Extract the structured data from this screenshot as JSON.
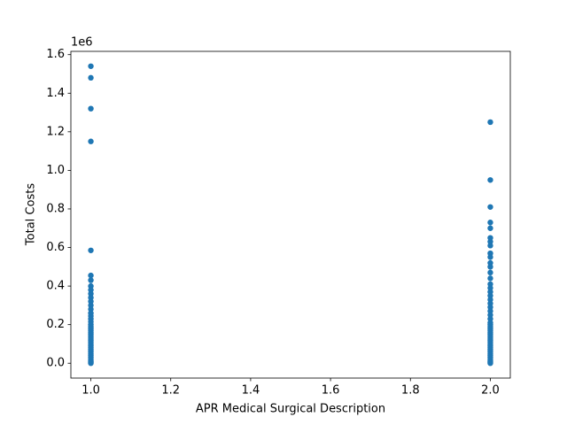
{
  "chart_data": {
    "type": "scatter",
    "xlabel": "APR Medical Surgical Description",
    "ylabel": "Total Costs",
    "y_offset_label": "1e6",
    "color": "#1f77b4",
    "xlim": [
      0.95,
      2.05
    ],
    "ylim": [
      -0.077,
      1.617
    ],
    "xticks": [
      {
        "value": 1.0,
        "label": "1.0"
      },
      {
        "value": 1.2,
        "label": "1.2"
      },
      {
        "value": 1.4,
        "label": "1.4"
      },
      {
        "value": 1.6,
        "label": "1.6"
      },
      {
        "value": 1.8,
        "label": "1.8"
      },
      {
        "value": 2.0,
        "label": "2.0"
      }
    ],
    "yticks": [
      {
        "value": 0.0,
        "label": "0.0"
      },
      {
        "value": 0.2,
        "label": "0.2"
      },
      {
        "value": 0.4,
        "label": "0.4"
      },
      {
        "value": 0.6,
        "label": "0.6"
      },
      {
        "value": 0.8,
        "label": "0.8"
      },
      {
        "value": 1.0,
        "label": "1.0"
      },
      {
        "value": 1.2,
        "label": "1.2"
      },
      {
        "value": 1.4,
        "label": "1.4"
      },
      {
        "value": 1.6,
        "label": "1.6"
      }
    ],
    "x": [
      1,
      1,
      1,
      1,
      1,
      1,
      1,
      1,
      1,
      1,
      1,
      1,
      1,
      1,
      1,
      1,
      1,
      1,
      1,
      1,
      1,
      1,
      1,
      1,
      1,
      1,
      1,
      1,
      1,
      1,
      1,
      1,
      1,
      1,
      1,
      1,
      1,
      1,
      1,
      1,
      2,
      2,
      2,
      2,
      2,
      2,
      2,
      2,
      2,
      2,
      2,
      2,
      2,
      2,
      2,
      2,
      2,
      2,
      2,
      2,
      2,
      2,
      2,
      2,
      2,
      2,
      2,
      2,
      2,
      2,
      2,
      2,
      2,
      2,
      2,
      2,
      2,
      2,
      2,
      2,
      2,
      2,
      2,
      2,
      2,
      2,
      2
    ],
    "values": [
      1.54,
      1.48,
      1.32,
      1.15,
      0.585,
      0.455,
      0.43,
      0.4,
      0.38,
      0.36,
      0.34,
      0.32,
      0.3,
      0.28,
      0.26,
      0.245,
      0.23,
      0.215,
      0.2,
      0.19,
      0.18,
      0.17,
      0.16,
      0.15,
      0.14,
      0.13,
      0.12,
      0.11,
      0.1,
      0.09,
      0.08,
      0.07,
      0.06,
      0.05,
      0.04,
      0.03,
      0.02,
      0.01,
      0.005,
      0.0,
      1.25,
      0.95,
      0.81,
      0.73,
      0.7,
      0.65,
      0.63,
      0.61,
      0.57,
      0.55,
      0.52,
      0.5,
      0.47,
      0.44,
      0.41,
      0.39,
      0.37,
      0.35,
      0.33,
      0.31,
      0.29,
      0.27,
      0.25,
      0.23,
      0.21,
      0.2,
      0.19,
      0.18,
      0.17,
      0.16,
      0.15,
      0.14,
      0.13,
      0.12,
      0.11,
      0.1,
      0.09,
      0.08,
      0.07,
      0.06,
      0.05,
      0.04,
      0.03,
      0.02,
      0.01,
      0.005,
      0.0
    ]
  }
}
